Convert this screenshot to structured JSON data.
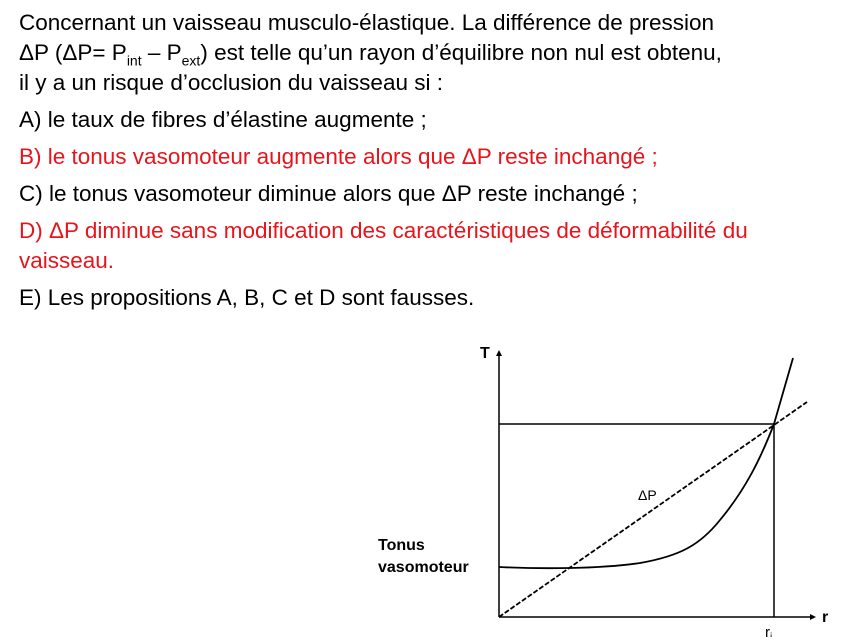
{
  "question": {
    "intro_1": "Concernant un vaisseau musculo-élastique. La différence de pression",
    "intro_2a": "ΔP (ΔP= P",
    "intro_2_sub1": "int",
    "intro_2b": " – P",
    "intro_2_sub2": "ext",
    "intro_2c": ") est telle qu’un rayon d’équilibre non nul est obtenu,",
    "intro_3": "il y a un risque d’occlusion du vaisseau si :",
    "options": [
      {
        "text": "A) le taux de fibres d’élastine augmente ;",
        "correct": false
      },
      {
        "text": "B) le tonus vasomoteur augmente alors que ΔP reste inchangé ;",
        "correct": true
      },
      {
        "text": "C) le tonus vasomoteur diminue alors que ΔP reste inchangé ;",
        "correct": false
      },
      {
        "text": "D) ΔP diminue sans modification des caractéristiques de déformabilité du vaisseau.",
        "correct": true
      },
      {
        "text": "E) Les propositions A, B, C et D sont fausses.",
        "correct": false
      }
    ],
    "correct_color": "#e8141b"
  },
  "diagram": {
    "y_axis_label": "T",
    "x_axis_label": "r",
    "x_tick_label": "r",
    "x_tick_sub": "i",
    "line_label": "ΔP",
    "tonus_label_1": "Tonus",
    "tonus_label_2": "vasomoteur"
  }
}
